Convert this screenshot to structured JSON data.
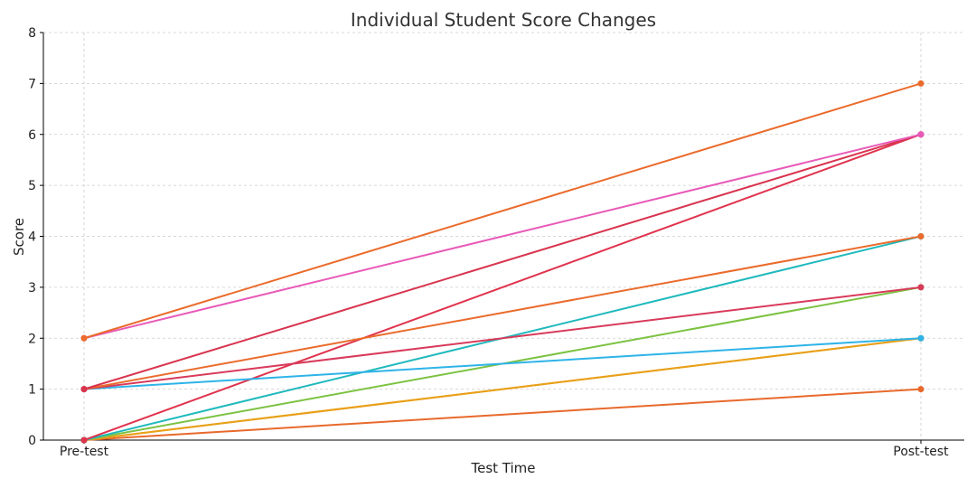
{
  "chart_data": {
    "type": "line",
    "title": "Individual Student Score Changes",
    "xlabel": "Test Time",
    "ylabel": "Score",
    "categories": [
      "Pre-test",
      "Post-test"
    ],
    "ylim": [
      0,
      8
    ],
    "yticks": [
      "0",
      "1",
      "2",
      "3",
      "4",
      "5",
      "6",
      "7",
      "8"
    ],
    "grid": true,
    "series": [
      {
        "values": [
          0,
          1
        ],
        "color": "#e8692c"
      },
      {
        "values": [
          0,
          2
        ],
        "color": "#f2a81d"
      },
      {
        "values": [
          0,
          2
        ],
        "color": "#e8a01a"
      },
      {
        "values": [
          0,
          3
        ],
        "color": "#7cc242"
      },
      {
        "values": [
          0,
          4
        ],
        "color": "#1fb9bd"
      },
      {
        "values": [
          0,
          6
        ],
        "color": "#e0334d"
      },
      {
        "values": [
          1,
          2
        ],
        "color": "#2eb3e8"
      },
      {
        "values": [
          1,
          3
        ],
        "color": "#d83a5a"
      },
      {
        "values": [
          1,
          4
        ],
        "color": "#ea6b2c"
      },
      {
        "values": [
          1,
          6
        ],
        "color": "#d8344f"
      },
      {
        "values": [
          2,
          6
        ],
        "color": "#e85ab8"
      },
      {
        "values": [
          2,
          7
        ],
        "color": "#ea6b2c"
      }
    ]
  }
}
